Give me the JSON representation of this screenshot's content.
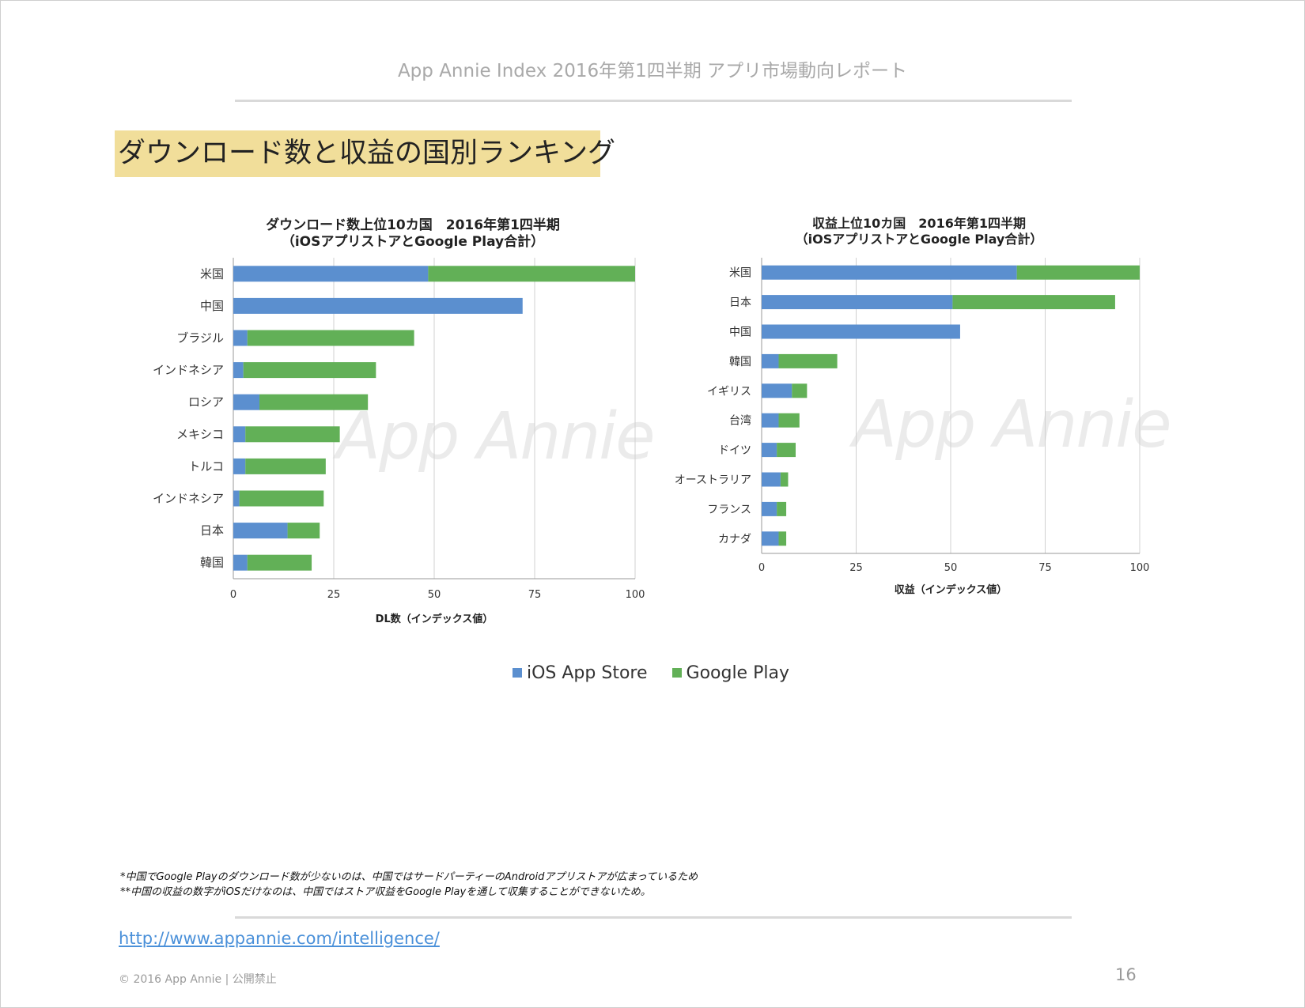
{
  "header": "App Annie Index 2016年第1四半期 アプリ市場動向レポート",
  "section_title": "ダウンロード数と収益の国別ランキング",
  "watermark": "App Annie",
  "colors": {
    "ios": "#5b8fcf",
    "google": "#62b057"
  },
  "legend": {
    "ios": "iOS App Store",
    "google": "Google Play"
  },
  "chart_data": [
    {
      "type": "bar",
      "orientation": "horizontal",
      "stacked": true,
      "title_line1": "ダウンロード数上位10カ国　2016年第1四半期",
      "title_line2": "（iOSアプリストアとGoogle Play合計）",
      "xlabel": "DL数（インデックス値）",
      "xlim": [
        0,
        100
      ],
      "xticks": [
        0,
        25,
        50,
        75,
        100
      ],
      "grid": true,
      "categories": [
        "米国",
        "中国",
        "ブラジル",
        "インドネシア",
        "ロシア",
        "メキシコ",
        "トルコ",
        "インドネシア",
        "日本",
        "韓国"
      ],
      "series": [
        {
          "name": "iOS App Store",
          "values": [
            48.5,
            72,
            3.5,
            2.5,
            6.5,
            3,
            3,
            1.5,
            13.5,
            3.5
          ]
        },
        {
          "name": "Google Play",
          "values": [
            51.5,
            0,
            41.5,
            33,
            27,
            23.5,
            20,
            21,
            8,
            16
          ]
        }
      ]
    },
    {
      "type": "bar",
      "orientation": "horizontal",
      "stacked": true,
      "title_line1": "収益上位10カ国　2016年第1四半期",
      "title_line2": "（iOSアプリストアとGoogle Play合計）",
      "xlabel": "収益（インデックス値）",
      "xlim": [
        0,
        100
      ],
      "xticks": [
        0,
        25,
        50,
        75,
        100
      ],
      "grid": true,
      "categories": [
        "米国",
        "日本",
        "中国",
        "韓国",
        "イギリス",
        "台湾",
        "ドイツ",
        "オーストラリア",
        "フランス",
        "カナダ"
      ],
      "series": [
        {
          "name": "iOS App Store",
          "values": [
            67.5,
            50.5,
            52.5,
            4.5,
            8,
            4.5,
            4,
            5,
            4,
            4.5
          ]
        },
        {
          "name": "Google Play",
          "values": [
            32.5,
            43,
            0,
            15.5,
            4,
            5.5,
            5,
            2,
            2.5,
            2
          ]
        }
      ]
    }
  ],
  "footnotes": [
    "*中国でGoogle Playのダウンロード数が少ないのは、中国ではサードパーティーのAndroidアプリストアが広まっているため",
    "**中国の収益の数字がiOSだけなのは、中国ではストア収益をGoogle Playを通して収集することができないため。"
  ],
  "url": "http://www.appannie.com/intelligence/",
  "copyright": "© 2016 App Annie | 公開禁止",
  "page_number": "16"
}
